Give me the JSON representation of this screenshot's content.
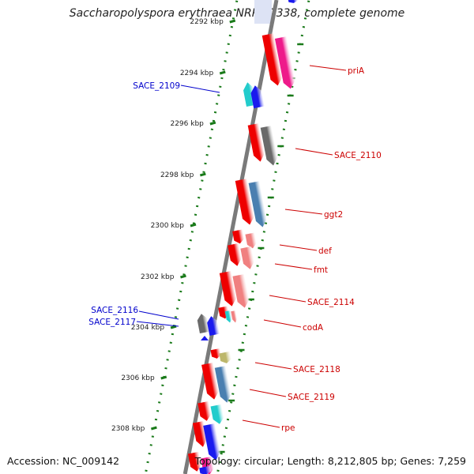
{
  "title": "Saccharopolyspora erythraea NRRL 2338, complete genome",
  "accession": "Accession: NC_009142",
  "topology": "Topology: circular; Length: 8,212,805 bp; Genes: 7,259",
  "colors": {
    "backbone": "#7a7a7a",
    "tick": "#1a7a1a",
    "label_forward": "#cc0000",
    "label_reverse": "#0000cc",
    "red": "#ee0000",
    "magenta": "#ee1a8a",
    "gray": "#6a6a6a",
    "steelblue": "#4a7fb0",
    "salmon": "#f08080",
    "cyan": "#22cccc",
    "blue": "#1a1aee",
    "khaki": "#bdb76b"
  },
  "ticks": [
    {
      "label": "2292 kbp"
    },
    {
      "label": "2294 kbp"
    },
    {
      "label": "2296 kbp"
    },
    {
      "label": "2298 kbp"
    },
    {
      "label": "2300 kbp"
    },
    {
      "label": "2302 kbp"
    },
    {
      "label": "2304 kbp"
    },
    {
      "label": "2306 kbp"
    },
    {
      "label": "2308 kbp"
    }
  ],
  "gene_labels": [
    {
      "name": "priA",
      "strand": "forward"
    },
    {
      "name": "SACE_2109",
      "strand": "reverse"
    },
    {
      "name": "SACE_2110",
      "strand": "forward"
    },
    {
      "name": "ggt2",
      "strand": "forward"
    },
    {
      "name": "def",
      "strand": "forward"
    },
    {
      "name": "fmt",
      "strand": "forward"
    },
    {
      "name": "SACE_2114",
      "strand": "forward"
    },
    {
      "name": "SACE_2116",
      "strand": "reverse"
    },
    {
      "name": "SACE_2117",
      "strand": "reverse"
    },
    {
      "name": "codA",
      "strand": "forward"
    },
    {
      "name": "SACE_2118",
      "strand": "forward"
    },
    {
      "name": "SACE_2119",
      "strand": "forward"
    },
    {
      "name": "rpe",
      "strand": "forward"
    }
  ]
}
